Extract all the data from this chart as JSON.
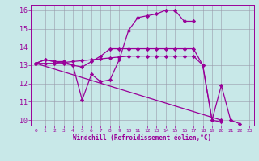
{
  "xlabel": "Windchill (Refroidissement éolien,°C)",
  "background_color": "#c8e8e8",
  "line_color": "#990099",
  "grid_color": "#9999aa",
  "xlim": [
    -0.5,
    23.5
  ],
  "ylim": [
    9.7,
    16.3
  ],
  "xticks": [
    0,
    1,
    2,
    3,
    4,
    5,
    6,
    7,
    8,
    9,
    10,
    11,
    12,
    13,
    14,
    15,
    16,
    17,
    18,
    19,
    20,
    21,
    22,
    23
  ],
  "yticks": [
    10,
    11,
    12,
    13,
    14,
    15,
    16
  ],
  "lines": [
    {
      "x": [
        0,
        1,
        2,
        3,
        4,
        5,
        6,
        7,
        8,
        9,
        10,
        11,
        12,
        13,
        14,
        15,
        16,
        17
      ],
      "y": [
        13.1,
        13.3,
        13.2,
        13.2,
        13.0,
        11.1,
        12.5,
        12.1,
        12.2,
        13.3,
        14.9,
        15.6,
        15.7,
        15.8,
        16.0,
        16.0,
        15.4,
        15.4
      ]
    },
    {
      "x": [
        0,
        1,
        2,
        3,
        4,
        5,
        6,
        7,
        8,
        9,
        10,
        11,
        12,
        13,
        14,
        15,
        16,
        17,
        18,
        19,
        20,
        21,
        22
      ],
      "y": [
        13.1,
        13.3,
        13.2,
        13.1,
        13.0,
        12.9,
        13.2,
        13.5,
        13.9,
        13.9,
        13.9,
        13.9,
        13.9,
        13.9,
        13.9,
        13.9,
        13.9,
        13.9,
        13.0,
        10.0,
        11.9,
        10.0,
        9.8
      ]
    },
    {
      "x": [
        0,
        1,
        2,
        3,
        4,
        5,
        6,
        7,
        8,
        9,
        10,
        11,
        12,
        13,
        14,
        15,
        16,
        17,
        18,
        19,
        20
      ],
      "y": [
        13.1,
        13.1,
        13.1,
        13.15,
        13.2,
        13.25,
        13.3,
        13.35,
        13.4,
        13.45,
        13.5,
        13.5,
        13.5,
        13.5,
        13.5,
        13.5,
        13.5,
        13.5,
        13.0,
        10.0,
        9.9
      ]
    },
    {
      "x": [
        0,
        20
      ],
      "y": [
        13.1,
        10.0
      ]
    }
  ]
}
